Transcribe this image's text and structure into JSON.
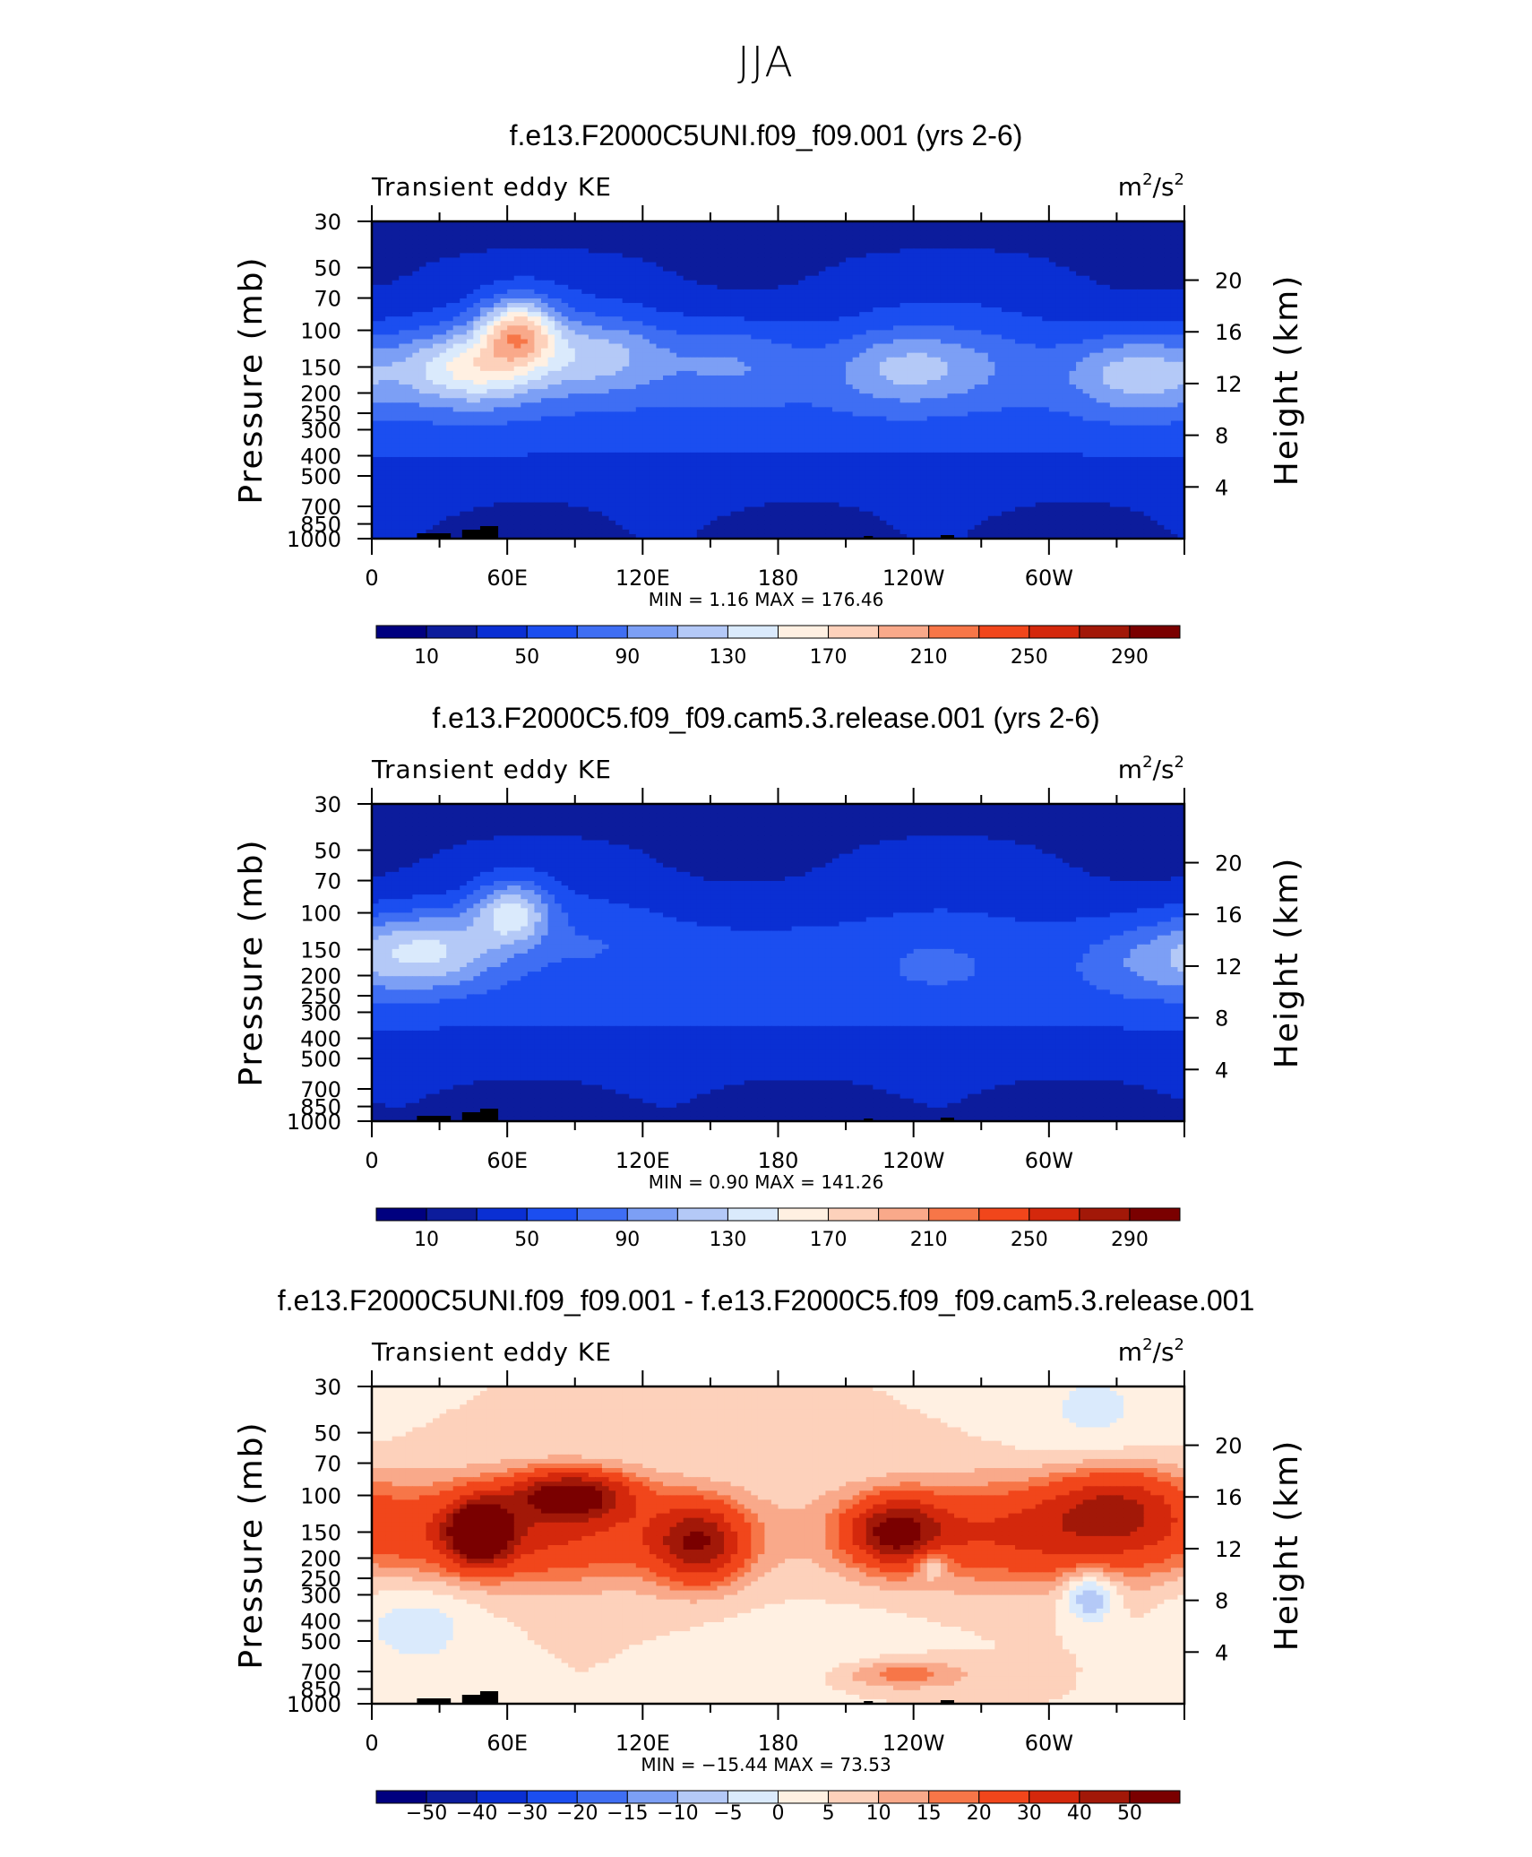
{
  "page_title": "JJA",
  "colors": {
    "main_scale": [
      "#00007f",
      "#0c1c9c",
      "#0a2fd3",
      "#1b4ef0",
      "#3f6ef3",
      "#7c9ff5",
      "#b4c9f7",
      "#daeafc",
      "#fff0e2",
      "#fdd1bb",
      "#f9a98a",
      "#f77648",
      "#f1461b",
      "#d4280c",
      "#a21808",
      "#7a0000"
    ],
    "diff_scale": [
      "#00007f",
      "#0c1c9c",
      "#0a2fd3",
      "#1b4ef0",
      "#3f6ef3",
      "#7c9ff5",
      "#b4c9f7",
      "#daeafc",
      "#fff0e2",
      "#fdd1bb",
      "#f9a98a",
      "#f77648",
      "#f1461b",
      "#d4280c",
      "#a21808",
      "#7a0000"
    ],
    "topography": "#000000"
  },
  "chart_data": [
    {
      "type": "heatmap",
      "title": "f.e13.F2000C5UNI.f09_f09.001 (yrs 2-6)",
      "left_string": "Transient eddy KE",
      "units_base": "m",
      "units_mid": "/s",
      "units_sup": "2",
      "ylabel": "Pressure (mb)",
      "y2label": "Height (km)",
      "x_ticks": [
        "0",
        "60E",
        "120E",
        "180",
        "120W",
        "60W"
      ],
      "y_ticks": [
        "30",
        "50",
        "70",
        "100",
        "150",
        "200",
        "250",
        "300",
        "400",
        "500",
        "700",
        "850",
        "1000"
      ],
      "y2_ticks": [
        "20",
        "16",
        "12",
        "8",
        "4"
      ],
      "min_label": "MIN =",
      "min_value": "1.16",
      "max_label": "MAX =",
      "max_value": "176.46",
      "levels": [
        10,
        30,
        50,
        70,
        90,
        110,
        130,
        150,
        170,
        190,
        210,
        230,
        250,
        270,
        290
      ],
      "colorbar_labels": [
        "10",
        "50",
        "90",
        "130",
        "170",
        "210",
        "250",
        "290"
      ],
      "grid": false,
      "features": {
        "jet_peak_value": 176.46,
        "jet_peak_lon": 65,
        "jet_peak_pres": 100,
        "upper_bands": [
          {
            "lon": 45,
            "pres": 150,
            "value": 155
          },
          {
            "lon": 100,
            "pres": 130,
            "value": 120
          },
          {
            "lon": 160,
            "pres": 140,
            "value": 90
          },
          {
            "lon": 235,
            "pres": 150,
            "value": 110
          },
          {
            "lon": 270,
            "pres": 140,
            "value": 80
          },
          {
            "lon": 340,
            "pres": 160,
            "value": 120
          }
        ]
      }
    },
    {
      "type": "heatmap",
      "title": "f.e13.F2000C5.f09_f09.cam5.3.release.001 (yrs 2-6)",
      "left_string": "Transient eddy KE",
      "units_base": "m",
      "units_mid": "/s",
      "units_sup": "2",
      "ylabel": "Pressure (mb)",
      "y2label": "Height (km)",
      "x_ticks": [
        "0",
        "60E",
        "120E",
        "180",
        "120W",
        "60W"
      ],
      "y_ticks": [
        "30",
        "50",
        "70",
        "100",
        "150",
        "200",
        "250",
        "300",
        "400",
        "500",
        "700",
        "850",
        "1000"
      ],
      "y2_ticks": [
        "20",
        "16",
        "12",
        "8",
        "4"
      ],
      "min_label": "MIN =",
      "min_value": "0.90",
      "max_label": "MAX =",
      "max_value": "141.26",
      "levels": [
        10,
        30,
        50,
        70,
        90,
        110,
        130,
        150,
        170,
        190,
        210,
        230,
        250,
        270,
        290
      ],
      "colorbar_labels": [
        "10",
        "50",
        "90",
        "130",
        "170",
        "210",
        "250",
        "290"
      ],
      "grid": false,
      "features": {
        "jet_peak_value": 141.26,
        "jet_peak_lon": 62,
        "jet_peak_pres": 100,
        "upper_bands": [
          {
            "lon": 25,
            "pres": 150,
            "value": 130
          },
          {
            "lon": 100,
            "pres": 130,
            "value": 70
          },
          {
            "lon": 250,
            "pres": 170,
            "value": 70
          },
          {
            "lon": 345,
            "pres": 170,
            "value": 85
          }
        ]
      }
    },
    {
      "type": "heatmap",
      "title": "f.e13.F2000C5UNI.f09_f09.001 - f.e13.F2000C5.f09_f09.cam5.3.release.001",
      "left_string": "Transient eddy KE",
      "units_base": "m",
      "units_mid": "/s",
      "units_sup": "2",
      "ylabel": "Pressure (mb)",
      "y2label": "Height (km)",
      "x_ticks": [
        "0",
        "60E",
        "120E",
        "180",
        "120W",
        "60W"
      ],
      "y_ticks": [
        "30",
        "50",
        "70",
        "100",
        "150",
        "200",
        "250",
        "300",
        "400",
        "500",
        "700",
        "850",
        "1000"
      ],
      "y2_ticks": [
        "20",
        "16",
        "12",
        "8",
        "4"
      ],
      "min_label": "MIN =",
      "min_value": "−15.44",
      "max_label": "MAX =",
      "max_value": "73.53",
      "levels": [
        -50,
        -40,
        -30,
        -20,
        -15,
        -10,
        -5,
        0,
        5,
        10,
        15,
        20,
        30,
        40,
        50
      ],
      "colorbar_labels": [
        "−50",
        "−40",
        "−30",
        "−20",
        "−15",
        "−10",
        "−5",
        "0",
        "5",
        "10",
        "15",
        "20",
        "30",
        "40",
        "50"
      ],
      "grid": false,
      "features": {
        "max_value": 73.53,
        "max_lon": 48,
        "max_pres": 150,
        "min_value": -15.44,
        "min_lon": 318,
        "min_pres": 300
      }
    }
  ]
}
